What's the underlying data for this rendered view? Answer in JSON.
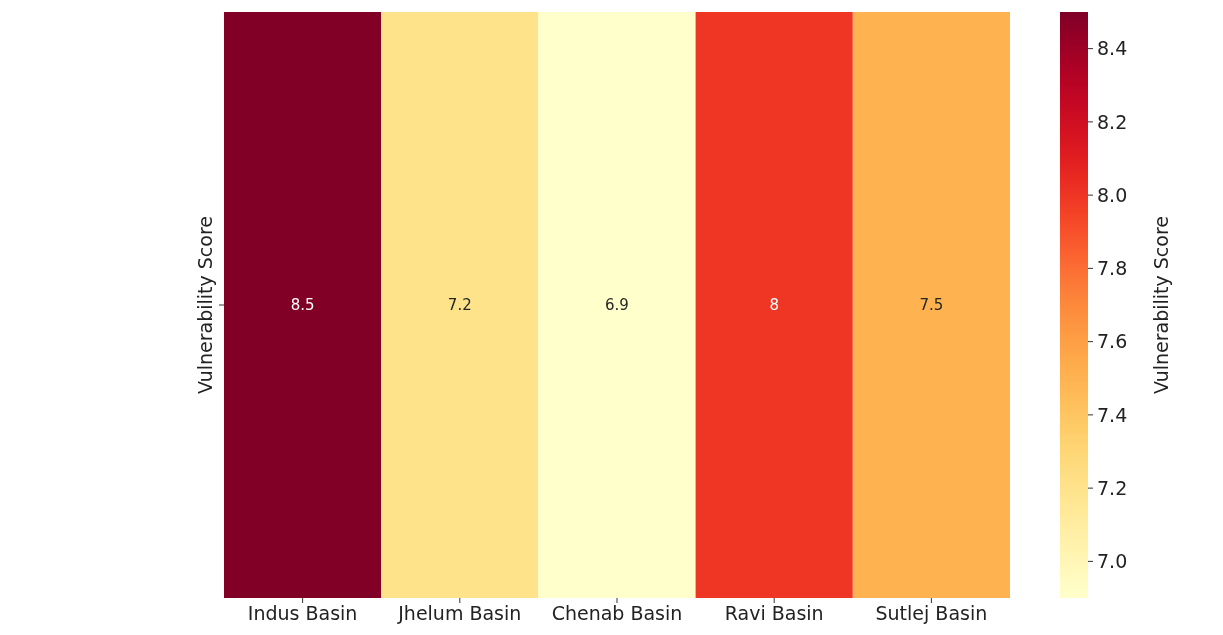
{
  "chart_data": {
    "type": "heatmap",
    "categories": [
      "Indus Basin",
      "Jhelum Basin",
      "Chenab Basin",
      "Ravi Basin",
      "Sutlej Basin"
    ],
    "y_categories": [
      null
    ],
    "cells": [
      [
        8.5,
        7.2,
        6.9,
        8,
        7.5
      ]
    ],
    "cell_labels": [
      [
        "8.5",
        "7.2",
        "6.9",
        "8",
        "7.5"
      ]
    ],
    "ylabel": "Vulnerability Score",
    "clabel": "Vulnerability Score",
    "clim": [
      6.9,
      8.5
    ],
    "cticks": [
      {
        "value": 7,
        "label": "7.0"
      },
      {
        "value": 7.2,
        "label": "7.2"
      },
      {
        "value": 7.4,
        "label": "7.4"
      },
      {
        "value": 7.6,
        "label": "7.6"
      },
      {
        "value": 7.8,
        "label": "7.8"
      },
      {
        "value": 8,
        "label": "8.0"
      },
      {
        "value": 8.2,
        "label": "8.2"
      },
      {
        "value": 8.4,
        "label": "8.4"
      }
    ]
  }
}
